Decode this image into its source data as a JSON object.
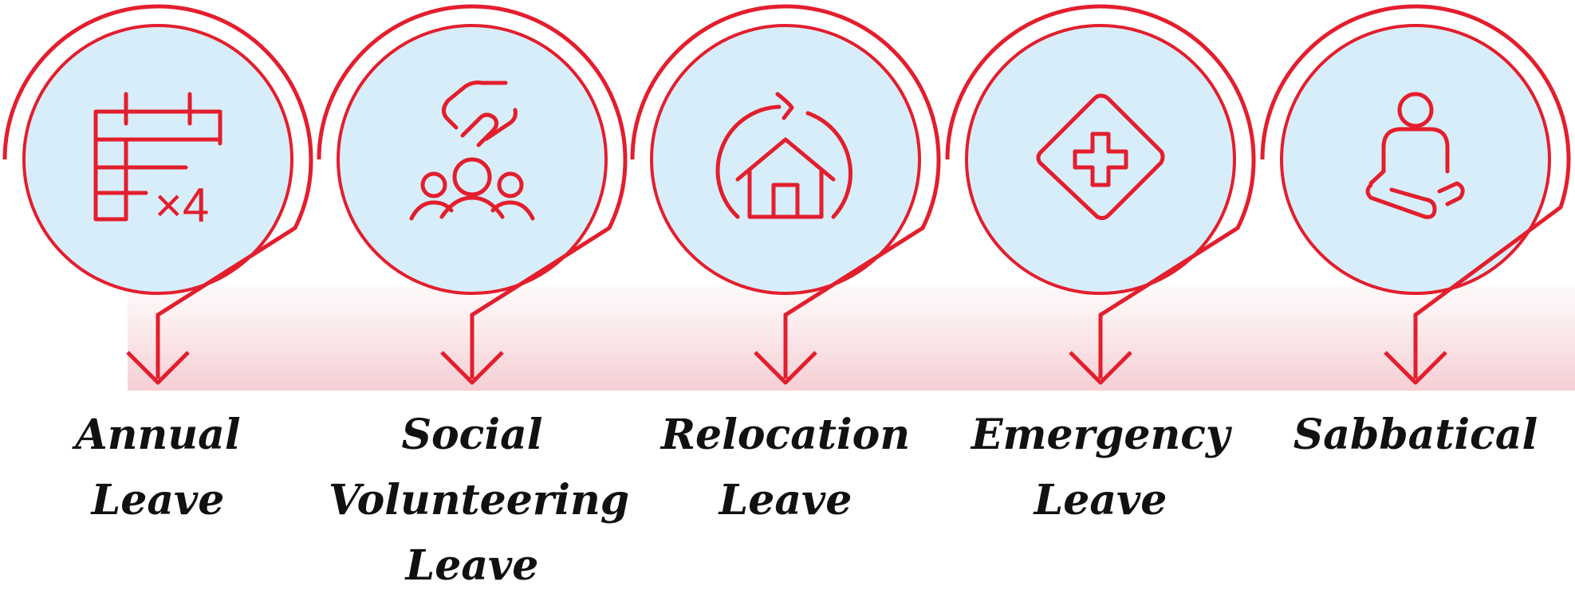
{
  "colors": {
    "accent": "#e31e2d",
    "circle_fill": "#d7edf9",
    "band": "#f4c9cf",
    "text": "#111111"
  },
  "steps": [
    {
      "icon": "calendar-x4-icon",
      "multiplier": "×4",
      "label": "Annual\nLeave"
    },
    {
      "icon": "volunteer-hands-people-icon",
      "label": "Social\nVolunteering\nLeave"
    },
    {
      "icon": "relocation-house-icon",
      "label": "Relocation\nLeave"
    },
    {
      "icon": "medical-cross-diamond-icon",
      "label": "Emergency\nLeave"
    },
    {
      "icon": "sabbatical-meditation-icon",
      "label": "Sabbatical"
    }
  ]
}
